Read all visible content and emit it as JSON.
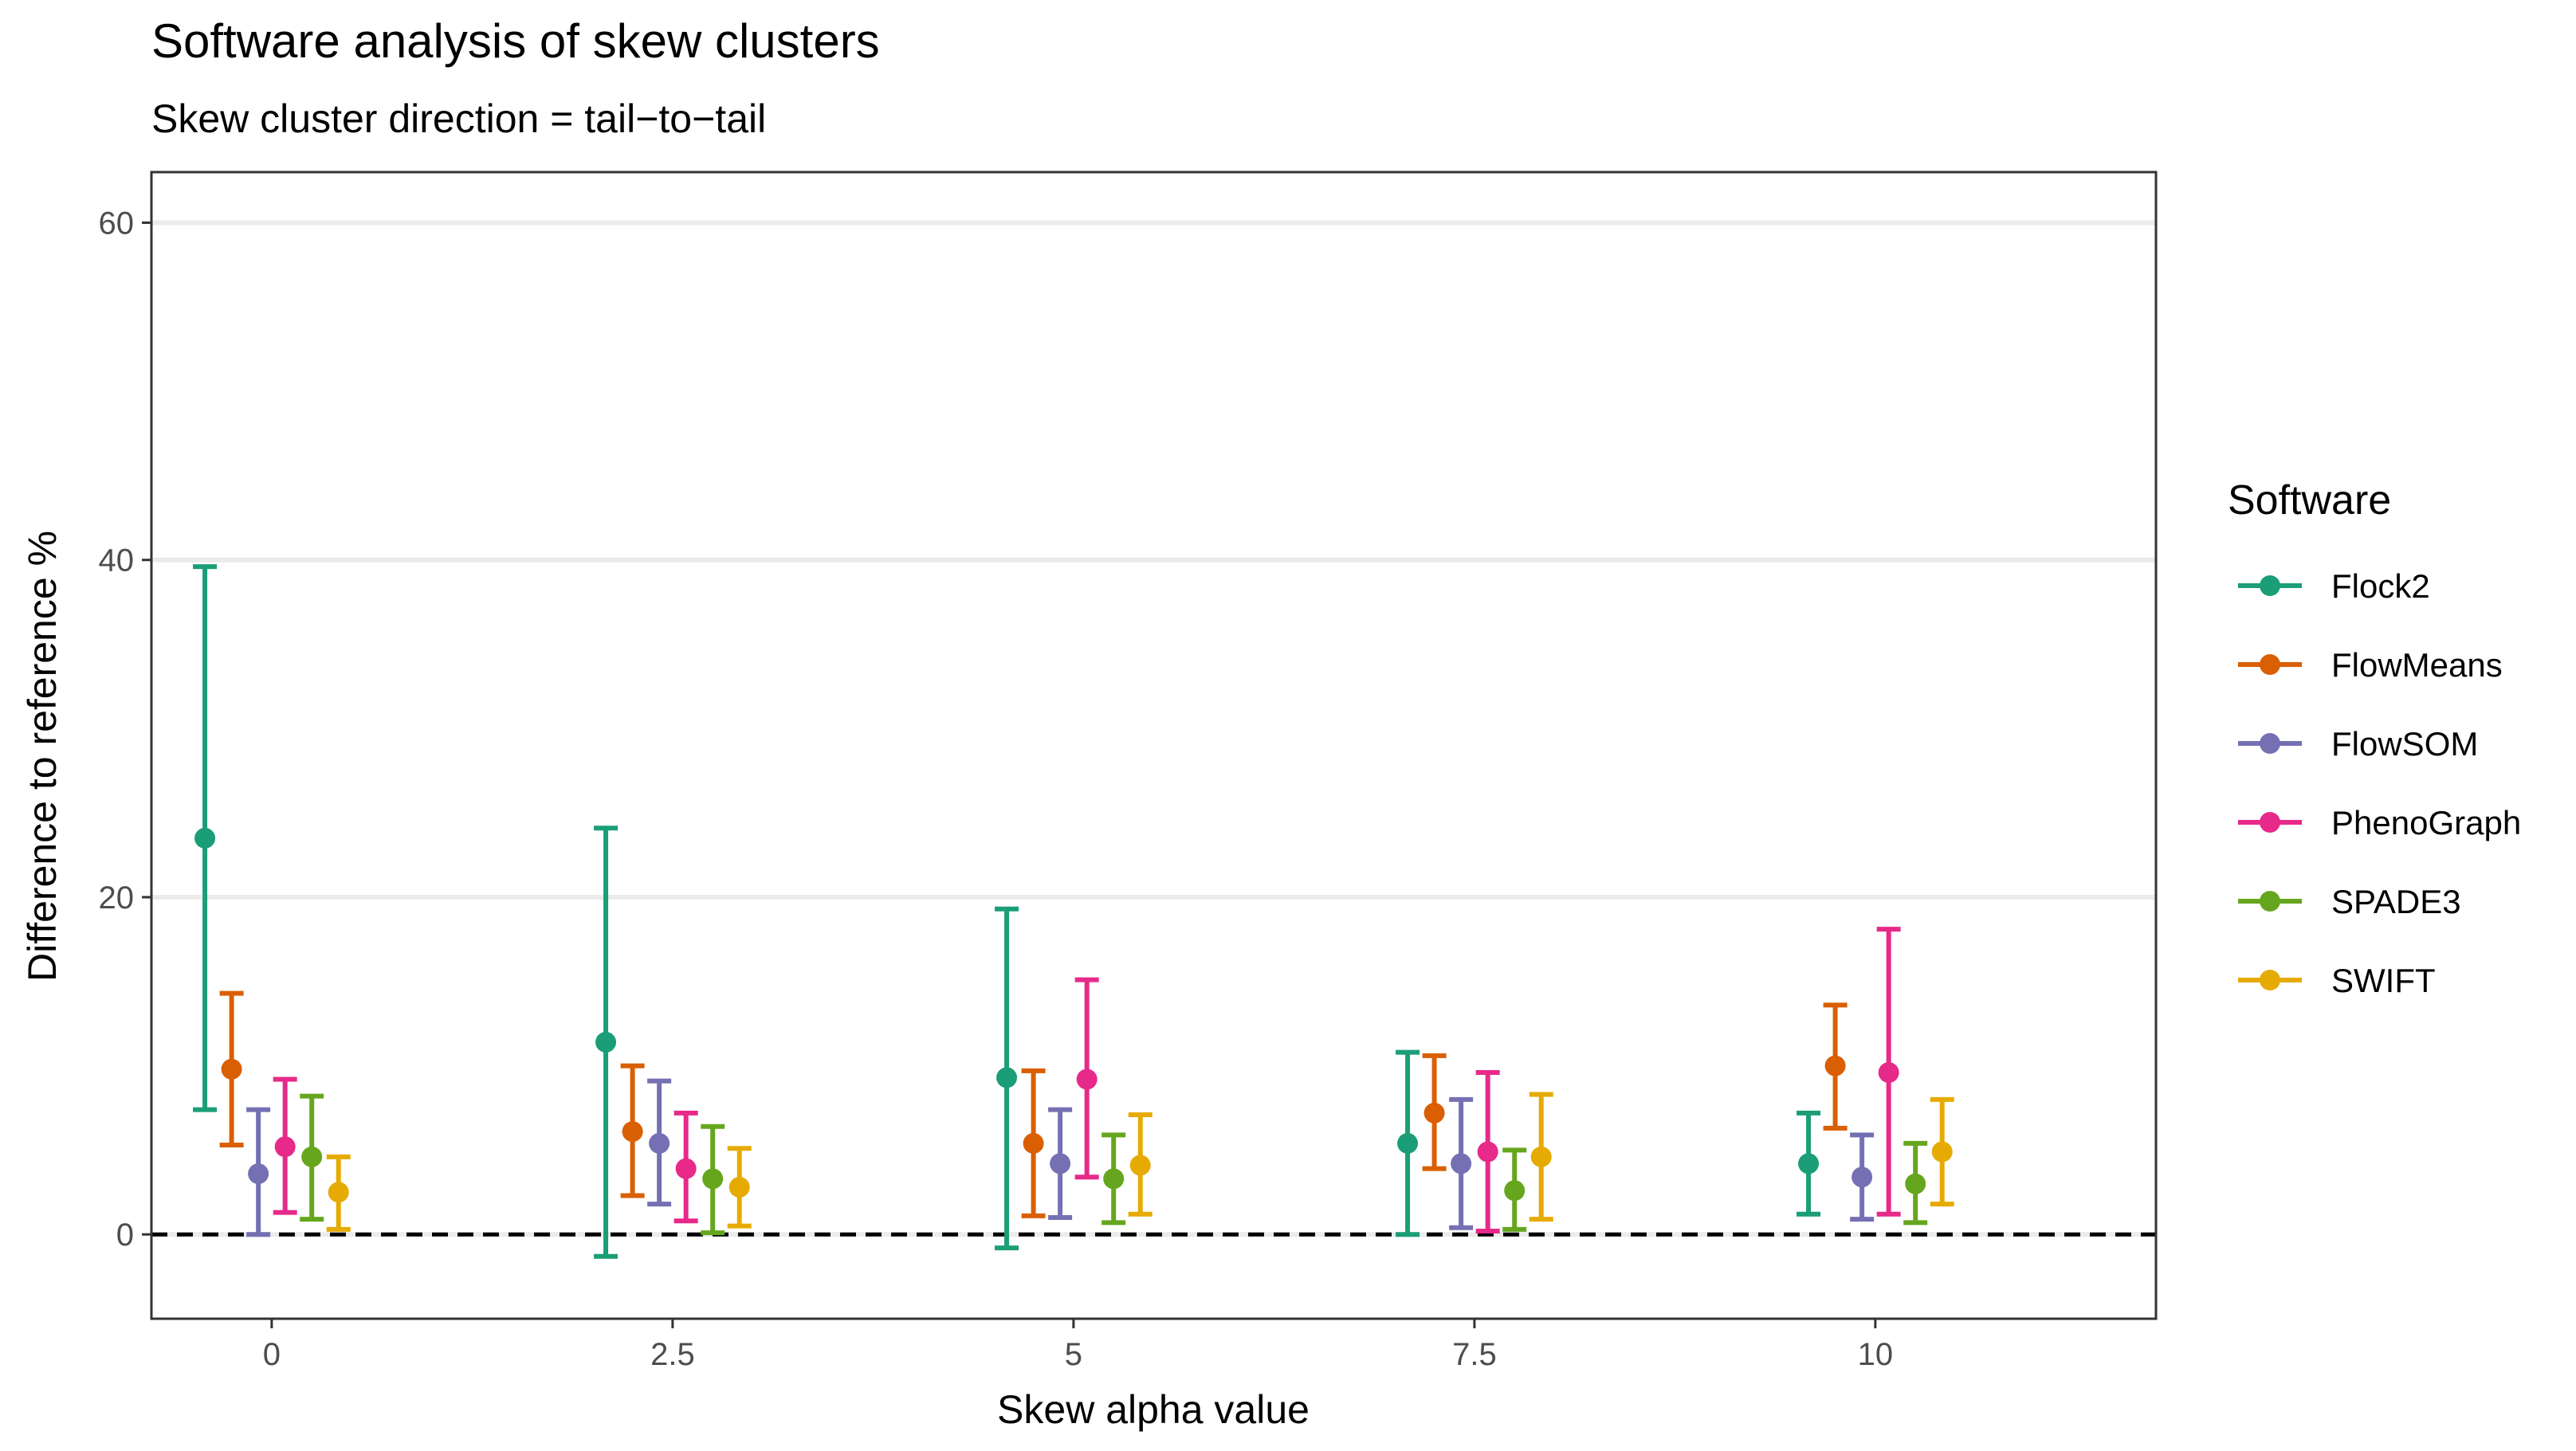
{
  "chart_data": {
    "type": "errorbar",
    "title": "Software analysis of skew clusters",
    "subtitle": "Skew cluster direction = tail−to−tail",
    "xlabel": "Skew alpha value",
    "ylabel": "Difference to reference %",
    "x_ticks": [
      "0",
      "2.5",
      "5",
      "7.5",
      "10"
    ],
    "x_values": [
      0,
      2.5,
      5,
      7.5,
      10
    ],
    "xlim": [
      -0.75,
      11.75
    ],
    "y_ticks": [
      "0",
      "20",
      "40",
      "60"
    ],
    "ylim": [
      -5,
      63
    ],
    "reference_line": 0,
    "legend_title": "Software",
    "dodge_width": 1.0,
    "series": [
      {
        "name": "Flock2",
        "color": "#1b9e77",
        "mean": [
          23.5,
          11.4,
          9.3,
          5.4,
          4.2
        ],
        "lower": [
          7.4,
          -1.3,
          -0.8,
          0.0,
          1.2
        ],
        "upper": [
          39.6,
          24.1,
          19.3,
          10.8,
          7.2
        ]
      },
      {
        "name": "FlowMeans",
        "color": "#d95f02",
        "mean": [
          9.8,
          6.1,
          5.4,
          7.2,
          10.0
        ],
        "lower": [
          5.3,
          2.3,
          1.1,
          3.9,
          6.3
        ],
        "upper": [
          14.3,
          10.0,
          9.7,
          10.6,
          13.6
        ]
      },
      {
        "name": "FlowSOM",
        "color": "#7570b3",
        "mean": [
          3.6,
          5.4,
          4.2,
          4.2,
          3.4
        ],
        "lower": [
          0.0,
          1.8,
          1.0,
          0.4,
          0.9
        ],
        "upper": [
          7.4,
          9.1,
          7.4,
          8.0,
          5.9
        ]
      },
      {
        "name": "PhenoGraph",
        "color": "#e7298a",
        "mean": [
          5.2,
          3.9,
          9.2,
          4.9,
          9.6
        ],
        "lower": [
          1.3,
          0.8,
          3.4,
          0.2,
          1.2
        ],
        "upper": [
          9.2,
          7.2,
          15.1,
          9.6,
          18.1
        ]
      },
      {
        "name": "SPADE3",
        "color": "#66a61e",
        "mean": [
          4.6,
          3.3,
          3.3,
          2.6,
          3.0
        ],
        "lower": [
          0.9,
          0.1,
          0.7,
          0.3,
          0.7
        ],
        "upper": [
          8.2,
          6.4,
          5.9,
          5.0,
          5.4
        ]
      },
      {
        "name": "SWIFT",
        "color": "#e6ab02",
        "mean": [
          2.5,
          2.8,
          4.1,
          4.6,
          4.9
        ],
        "lower": [
          0.3,
          0.5,
          1.2,
          0.9,
          1.8
        ],
        "upper": [
          4.6,
          5.1,
          7.1,
          8.3,
          8.0
        ]
      }
    ]
  }
}
